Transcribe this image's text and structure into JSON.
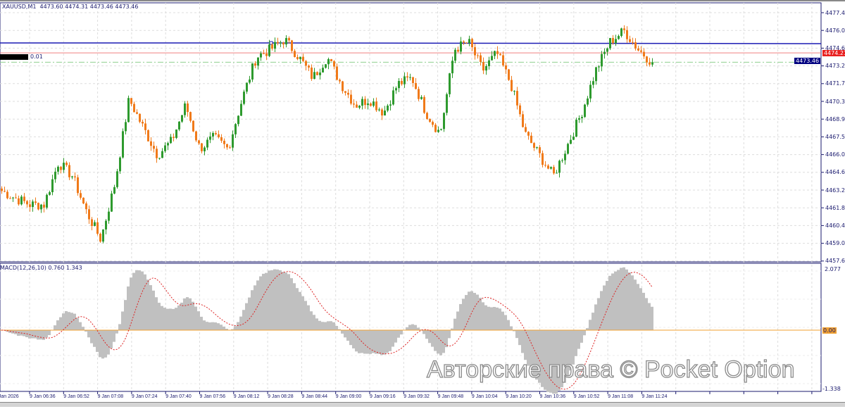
{
  "chart_header": {
    "symbol": "XAUUSD,M1",
    "ohlc": "4473.60 4474.31 4473.46 4473.46"
  },
  "order_label": {
    "volume": "0.01"
  },
  "macd": {
    "label": "MACD(12,26,10) 0.760 1.343",
    "axis_max": "2.077",
    "axis_zero": "0.00",
    "axis_min": "-1.338",
    "fast": 12,
    "slow": 26,
    "signal": 10
  },
  "price_axis": [
    "4477.45",
    "4476.05",
    "4474.60",
    "4473.20",
    "4471.75",
    "4470.35",
    "4468.90",
    "4467.50",
    "4466.05",
    "4464.65",
    "4463.20",
    "4461.80",
    "4460.40",
    "4459.00",
    "4457.60"
  ],
  "price_tags": {
    "ask": "4474.21",
    "bid": "4473.46"
  },
  "time_axis": [
    "9 Jan 2026",
    "9 Jan 06:36",
    "9 Jan 06:52",
    "9 Jan 07:08",
    "9 Jan 07:24",
    "9 Jan 07:40",
    "9 Jan 07:56",
    "9 Jan 08:12",
    "9 Jan 08:28",
    "9 Jan 08:44",
    "9 Jan 09:00",
    "9 Jan 09:16",
    "9 Jan 09:32",
    "9 Jan 09:48",
    "9 Jan 10:04",
    "9 Jan 10:20",
    "9 Jan 10:36",
    "9 Jan 10:52",
    "9 Jan 11:08",
    "9 Jan 11:24"
  ],
  "watermark": "Авторские права © Pocket Option",
  "colors": {
    "bull": "#2e9a2e",
    "bear": "#f07a1a",
    "level_line": "#1c1cb4",
    "ask_line": "#f08080",
    "bid_line": "#8fd08f",
    "macd_hist": "#c0c0c0",
    "macd_signal": "#dd2222",
    "zero_line": "#f0a030"
  },
  "chart_data": {
    "type": "candlestick",
    "symbol": "XAUUSD",
    "timeframe": "M1",
    "ylim": [
      4457.6,
      4477.45
    ],
    "levels": {
      "blue_line": 4474.7,
      "ask": 4474.21,
      "bid": 4473.46
    },
    "close_path_keypoints": [
      4463.1,
      4462.5,
      4462.0,
      4462.0,
      4465.4,
      4464.3,
      4461.4,
      4459.2,
      4463.7,
      4470.5,
      4468.2,
      4466.0,
      4467.1,
      4470.0,
      4466.5,
      4467.4,
      4466.5,
      4470.5,
      4473.9,
      4474.5,
      4475.3,
      4473.9,
      4472.2,
      4473.9,
      4471.7,
      4470.0,
      4470.5,
      4469.4,
      4471.7,
      4472.2,
      4469.4,
      4467.7,
      4474.5,
      4475.1,
      4472.8,
      4474.2,
      4471.7,
      4467.7,
      4466.0,
      4464.3,
      4466.8,
      4469.4,
      4472.8,
      4475.1,
      4476.0,
      4474.5,
      4473.46
    ]
  }
}
